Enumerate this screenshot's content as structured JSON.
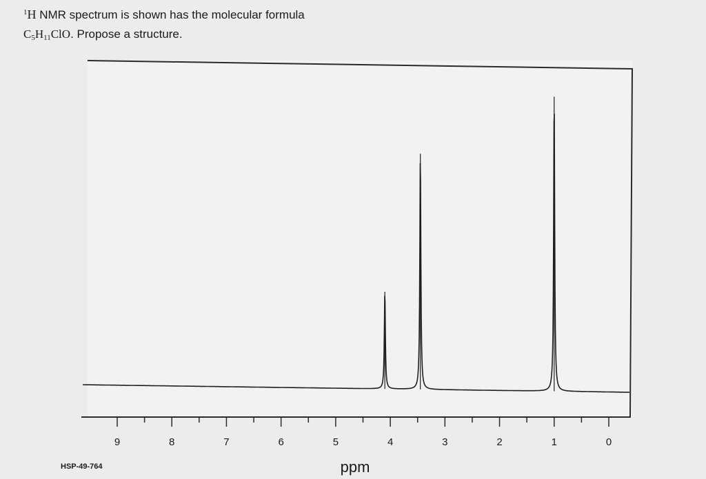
{
  "question": {
    "sup": "1",
    "nucleus": "H",
    "line1": " NMR spectrum is shown has the molecular formula",
    "formula": {
      "c": "C",
      "c_sub": "5",
      "h": "H",
      "h_sub": "11",
      "rest": "ClO"
    },
    "line2": ". Propose a structure."
  },
  "chart_data": {
    "type": "line",
    "title": "",
    "xlabel": "ppm",
    "ylabel": "",
    "xlim": [
      9.5,
      -0.5
    ],
    "x_reversed": true,
    "ticks": [
      "9",
      "8",
      "7",
      "6",
      "5",
      "4",
      "3",
      "2",
      "1",
      "0"
    ],
    "code": "HSP-49-764",
    "peaks": [
      {
        "ppm": 4.1,
        "relative_height": 0.33
      },
      {
        "ppm": 3.45,
        "relative_height": 0.8
      },
      {
        "ppm": 1.0,
        "relative_height": 1.0
      }
    ],
    "grid": false,
    "colors": {
      "line": "#1f1f1f",
      "frame": "#2a2a2a",
      "plot_bg": "#f2f2f2"
    }
  }
}
